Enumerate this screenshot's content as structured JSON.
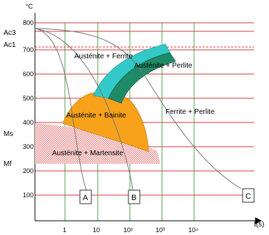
{
  "axes": {
    "y_unit": "°C",
    "x_unit": "t(s)",
    "y_ticks": [
      "800",
      "700",
      "600",
      "500",
      "400",
      "300",
      "200",
      "100"
    ],
    "x_ticks": [
      "1",
      "10",
      "10²",
      "10³",
      "10⁴"
    ]
  },
  "temperature_marks": {
    "ac3": "Ac3",
    "ac1": "Ac1",
    "ms": "Ms",
    "mf": "Mf"
  },
  "regions": {
    "austenite_ferrite": "Austénite + Ferrite",
    "austenite_perlite": "Austénite + Perlite",
    "austenite_bainite": "Austénite + Bainite",
    "austenite_martensite": "Austénite + Martensite",
    "ferrite_perlite": "Ferrite + Perlite"
  },
  "cooling_curves": {
    "a": "A",
    "b": "B",
    "c": "C"
  },
  "colors": {
    "gridline_temperature": "#d9363e",
    "gridline_time": "#3a9a3a",
    "ferrite_band": "#33c9c9",
    "perlite_band": "#1f8a66",
    "bainite_region": "#f7a21a",
    "martensite_hatch": "#e58a8a",
    "cooling_curve": "#777777"
  }
}
